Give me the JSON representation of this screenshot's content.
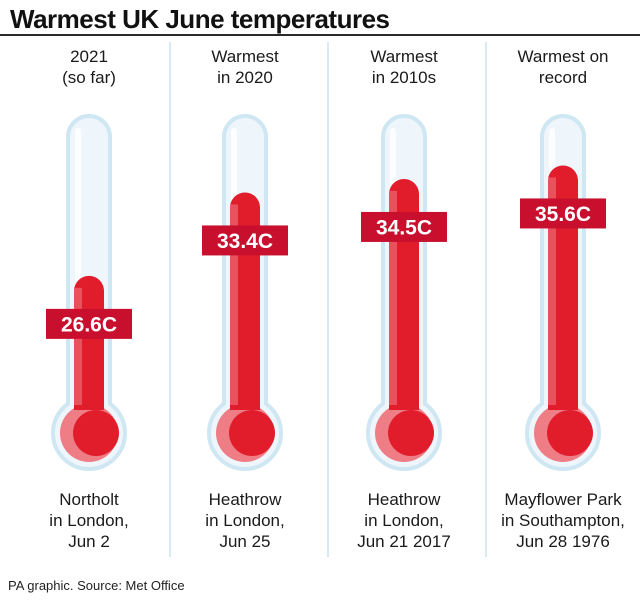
{
  "title": "Warmest UK June temperatures",
  "footer": "PA graphic. Source: Met Office",
  "colors": {
    "mercury": "#e21d2b",
    "mercury_shade": "#ee7d86",
    "tube": "#eef6fb",
    "tube_outline": "#cfe6f3",
    "label_bg": "#c8102e"
  },
  "chart_data": {
    "type": "bar",
    "title": "Warmest UK June temperatures",
    "unit": "C",
    "categories": [
      "2021 (so far)",
      "Warmest in 2020",
      "Warmest in 2010s",
      "Warmest on record"
    ],
    "values": [
      26.6,
      33.4,
      34.5,
      35.6
    ],
    "value_labels": [
      "26.6C",
      "33.4C",
      "34.5C",
      "35.6C"
    ],
    "columns": [
      {
        "header": [
          "2021",
          "(so far)"
        ],
        "caption": [
          "Northolt",
          "in London,",
          "Jun 2"
        ]
      },
      {
        "header": [
          "Warmest",
          "in 2020"
        ],
        "caption": [
          "Heathrow",
          "in London,",
          "Jun 25"
        ]
      },
      {
        "header": [
          "Warmest",
          "in 2010s"
        ],
        "caption": [
          "Heathrow",
          "in London,",
          "Jun 21 2017"
        ]
      },
      {
        "header": [
          "Warmest on",
          "record"
        ],
        "caption": [
          "Mayflower Park",
          "in Southampton,",
          "Jun 28 1976"
        ]
      }
    ]
  }
}
